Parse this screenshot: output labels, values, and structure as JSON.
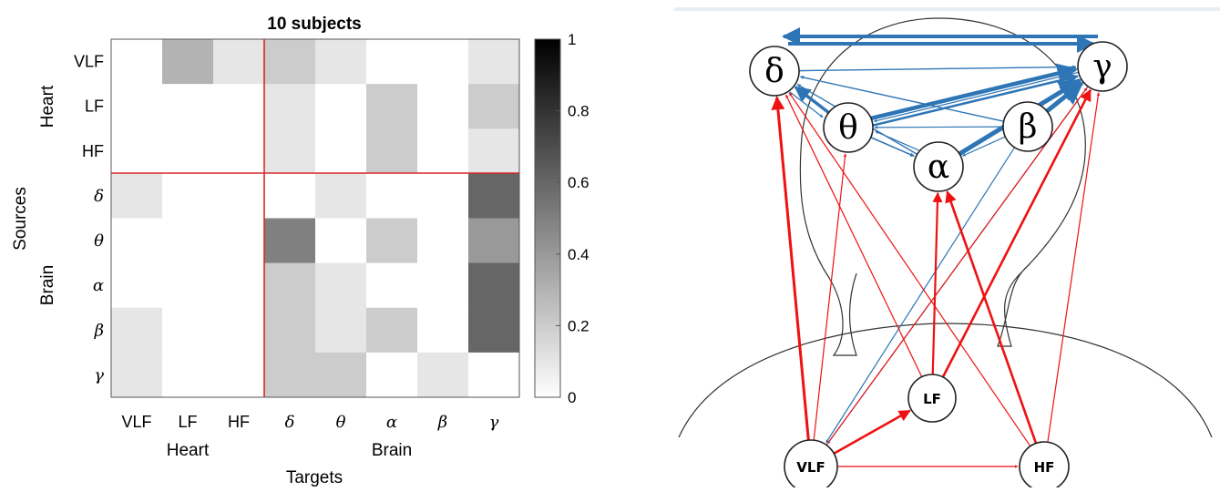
{
  "chart_data": [
    {
      "type": "heatmap",
      "title": "10 subjects",
      "xlabel": "Targets",
      "ylabel": "Sources",
      "rows": [
        "VLF",
        "LF",
        "HF",
        "δ",
        "θ",
        "α",
        "β",
        "γ"
      ],
      "cols": [
        "VLF",
        "LF",
        "HF",
        "δ",
        "θ",
        "α",
        "β",
        "γ"
      ],
      "row_groups": [
        {
          "name": "Heart",
          "span": 3
        },
        {
          "name": "Brain",
          "span": 5
        }
      ],
      "col_groups": [
        {
          "name": "Heart",
          "span": 3
        },
        {
          "name": "Brain",
          "span": 5
        }
      ],
      "values": [
        [
          0,
          0.3,
          0.1,
          0.2,
          0.1,
          0,
          0,
          0.1
        ],
        [
          0,
          0,
          0,
          0.1,
          0,
          0.2,
          0,
          0.2
        ],
        [
          0,
          0,
          0,
          0.1,
          0,
          0.2,
          0,
          0.1
        ],
        [
          0.1,
          0,
          0,
          0,
          0.1,
          0,
          0,
          0.6
        ],
        [
          0,
          0,
          0,
          0.5,
          0,
          0.2,
          0,
          0.4
        ],
        [
          0,
          0,
          0,
          0.2,
          0.1,
          0,
          0,
          0.6
        ],
        [
          0.1,
          0,
          0,
          0.2,
          0.1,
          0.2,
          0,
          0.6
        ],
        [
          0.1,
          0,
          0,
          0.2,
          0.2,
          0,
          0.1,
          0
        ]
      ],
      "colorbar": {
        "min": 0,
        "max": 1,
        "ticks": [
          0,
          0.2,
          0.4,
          0.6,
          0.8,
          1
        ]
      },
      "separator_color": "#d62728"
    }
  ],
  "network": {
    "nodes": [
      {
        "id": "delta",
        "label": "δ"
      },
      {
        "id": "theta",
        "label": "θ"
      },
      {
        "id": "alpha",
        "label": "α"
      },
      {
        "id": "beta",
        "label": "β"
      },
      {
        "id": "gamma",
        "label": "γ"
      },
      {
        "id": "lf",
        "label": "LF"
      },
      {
        "id": "vlf",
        "label": "VLF"
      },
      {
        "id": "hf",
        "label": "HF"
      }
    ],
    "brain_color": "#2e75b6",
    "heart_color": "#ee1111"
  }
}
